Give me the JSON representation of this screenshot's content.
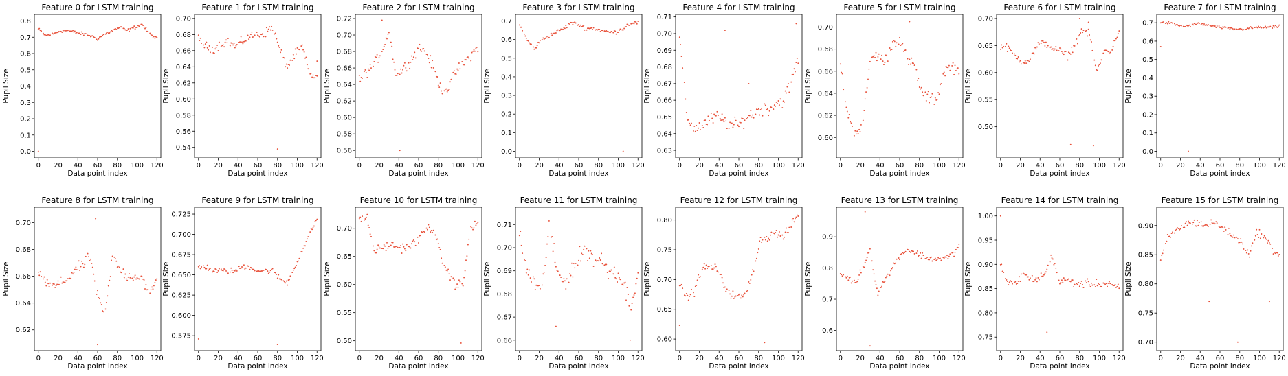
{
  "chart_data": [
    {
      "type": "scatter",
      "title": "Feature 0 for LSTM training",
      "xlabel": "Data point index",
      "ylabel": "Pupil Size",
      "xlim": [
        -4,
        124
      ],
      "ylim": [
        -0.04,
        0.84
      ],
      "yticks": [
        "0.0",
        "0.1",
        "0.2",
        "0.3",
        "0.4",
        "0.5",
        "0.6",
        "0.7",
        "0.8"
      ],
      "xticks": [
        "0",
        "20",
        "40",
        "60",
        "80",
        "100",
        "120"
      ],
      "color": "#e8513a",
      "baseline": [
        0.75,
        0.71,
        0.72,
        0.74,
        0.74,
        0.73,
        0.72,
        0.71,
        0.69,
        0.72,
        0.74,
        0.76,
        0.74,
        0.76,
        0.78,
        0.72,
        0.69
      ],
      "outliers": [
        [
          0,
          0.0
        ]
      ],
      "noise": 0.015
    },
    {
      "type": "scatter",
      "title": "Feature 1 for LSTM training",
      "xlabel": "Data point index",
      "ylabel": "Pupil Size",
      "xlim": [
        -4,
        124
      ],
      "ylim": [
        0.527,
        0.705
      ],
      "yticks": [
        "0.54",
        "0.56",
        "0.58",
        "0.60",
        "0.62",
        "0.64",
        "0.66",
        "0.68",
        "0.70"
      ],
      "xticks": [
        "0",
        "20",
        "40",
        "60",
        "80",
        "100",
        "120"
      ],
      "color": "#e8513a",
      "baseline": [
        0.675,
        0.665,
        0.662,
        0.668,
        0.672,
        0.665,
        0.672,
        0.678,
        0.68,
        0.682,
        0.69,
        0.66,
        0.64,
        0.655,
        0.665,
        0.63,
        0.628
      ],
      "outliers": [
        [
          80,
          0.538
        ],
        [
          120,
          0.647
        ]
      ],
      "noise": 0.008
    },
    {
      "type": "scatter",
      "title": "Feature 2 for LSTM training",
      "xlabel": "Data point index",
      "ylabel": "Pupil Size",
      "xlim": [
        -4,
        124
      ],
      "ylim": [
        0.551,
        0.725
      ],
      "yticks": [
        "0.56",
        "0.58",
        "0.60",
        "0.62",
        "0.64",
        "0.66",
        "0.68",
        "0.70",
        "0.72"
      ],
      "xticks": [
        "0",
        "20",
        "40",
        "60",
        "80",
        "100",
        "120"
      ],
      "color": "#e8513a",
      "baseline": [
        0.645,
        0.655,
        0.665,
        0.68,
        0.705,
        0.65,
        0.66,
        0.67,
        0.685,
        0.68,
        0.66,
        0.635,
        0.635,
        0.655,
        0.665,
        0.675,
        0.685
      ],
      "outliers": [
        [
          41,
          0.56
        ],
        [
          23,
          0.718
        ]
      ],
      "noise": 0.009
    },
    {
      "type": "scatter",
      "title": "Feature 3 for LSTM training",
      "xlabel": "Data point index",
      "ylabel": "Pupil Size",
      "xlim": [
        -4,
        124
      ],
      "ylim": [
        -0.035,
        0.735
      ],
      "yticks": [
        "0.0",
        "0.1",
        "0.2",
        "0.3",
        "0.4",
        "0.5",
        "0.6",
        "0.7"
      ],
      "xticks": [
        "0",
        "20",
        "40",
        "60",
        "80",
        "100",
        "120"
      ],
      "color": "#e8513a",
      "baseline": [
        0.68,
        0.6,
        0.55,
        0.6,
        0.62,
        0.64,
        0.66,
        0.69,
        0.68,
        0.66,
        0.66,
        0.65,
        0.64,
        0.64,
        0.66,
        0.69,
        0.69
      ],
      "outliers": [
        [
          105,
          0.0
        ]
      ],
      "noise": 0.015
    },
    {
      "type": "scatter",
      "title": "Feature 4 for LSTM training",
      "xlabel": "Data point index",
      "ylabel": "Pupil Size",
      "xlim": [
        -4,
        124
      ],
      "ylim": [
        0.6255,
        0.7115
      ],
      "yticks": [
        "0.63",
        "0.64",
        "0.65",
        "0.66",
        "0.67",
        "0.68",
        "0.69",
        "0.70",
        "0.71"
      ],
      "xticks": [
        "0",
        "20",
        "40",
        "60",
        "80",
        "100",
        "120"
      ],
      "color": "#e8513a",
      "baseline": [
        0.698,
        0.65,
        0.643,
        0.645,
        0.648,
        0.65,
        0.648,
        0.645,
        0.645,
        0.65,
        0.652,
        0.655,
        0.655,
        0.658,
        0.66,
        0.67,
        0.685
      ],
      "outliers": [
        [
          46,
          0.702
        ],
        [
          70,
          0.67
        ],
        [
          118,
          0.706
        ]
      ],
      "noise": 0.006
    },
    {
      "type": "scatter",
      "title": "Feature 5 for LSTM training",
      "xlabel": "Data point index",
      "ylabel": "Pupil Size",
      "xlim": [
        -4,
        124
      ],
      "ylim": [
        0.5815,
        0.7115
      ],
      "yticks": [
        "0.60",
        "0.62",
        "0.64",
        "0.66",
        "0.68",
        "0.70"
      ],
      "xticks": [
        "0",
        "20",
        "40",
        "60",
        "80",
        "100",
        "120"
      ],
      "color": "#e8513a",
      "baseline": [
        0.665,
        0.62,
        0.605,
        0.61,
        0.67,
        0.675,
        0.668,
        0.685,
        0.69,
        0.67,
        0.665,
        0.64,
        0.635,
        0.635,
        0.66,
        0.665,
        0.66
      ],
      "outliers": [
        [
          70,
          0.705
        ]
      ],
      "noise": 0.008
    },
    {
      "type": "scatter",
      "title": "Feature 6 for LSTM training",
      "xlabel": "Data point index",
      "ylabel": "Pupil Size",
      "xlim": [
        -4,
        124
      ],
      "ylim": [
        0.4425,
        0.7075
      ],
      "yticks": [
        "0.50",
        "0.55",
        "0.60",
        "0.65",
        "0.70"
      ],
      "xticks": [
        "0",
        "20",
        "40",
        "60",
        "80",
        "100",
        "120"
      ],
      "color": "#e8513a",
      "baseline": [
        0.65,
        0.645,
        0.63,
        0.62,
        0.625,
        0.65,
        0.655,
        0.645,
        0.64,
        0.63,
        0.65,
        0.68,
        0.67,
        0.6,
        0.64,
        0.64,
        0.68
      ],
      "outliers": [
        [
          71,
          0.467
        ],
        [
          94,
          0.465
        ],
        [
          80,
          0.7
        ],
        [
          89,
          0.693
        ]
      ],
      "noise": 0.01
    },
    {
      "type": "scatter",
      "title": "Feature 7 for LSTM training",
      "xlabel": "Data point index",
      "ylabel": "Pupil Size",
      "xlim": [
        -4,
        124
      ],
      "ylim": [
        -0.0355,
        0.7455
      ],
      "yticks": [
        "0.0",
        "0.1",
        "0.2",
        "0.3",
        "0.4",
        "0.5",
        "0.6",
        "0.7"
      ],
      "xticks": [
        "0",
        "20",
        "40",
        "60",
        "80",
        "100",
        "120"
      ],
      "color": "#e8513a",
      "baseline": [
        0.7,
        0.7,
        0.69,
        0.68,
        0.685,
        0.695,
        0.69,
        0.68,
        0.675,
        0.67,
        0.665,
        0.665,
        0.67,
        0.675,
        0.675,
        0.675,
        0.68
      ],
      "outliers": [
        [
          0,
          0.57
        ],
        [
          28,
          0.0
        ]
      ],
      "noise": 0.01
    },
    {
      "type": "scatter",
      "title": "Feature 8 for LSTM training",
      "xlabel": "Data point index",
      "ylabel": "Pupil Size",
      "xlim": [
        -4,
        124
      ],
      "ylim": [
        0.6045,
        0.7115
      ],
      "yticks": [
        "0.62",
        "0.64",
        "0.66",
        "0.68",
        "0.70"
      ],
      "xticks": [
        "0",
        "20",
        "40",
        "60",
        "80",
        "100",
        "120"
      ],
      "color": "#e8513a",
      "baseline": [
        0.665,
        0.655,
        0.652,
        0.655,
        0.658,
        0.665,
        0.668,
        0.675,
        0.645,
        0.63,
        0.675,
        0.665,
        0.66,
        0.66,
        0.66,
        0.645,
        0.658
      ],
      "outliers": [
        [
          58,
          0.703
        ],
        [
          60,
          0.609
        ]
      ],
      "noise": 0.006
    },
    {
      "type": "scatter",
      "title": "Feature 9 for LSTM training",
      "xlabel": "Data point index",
      "ylabel": "Pupil Size",
      "xlim": [
        -4,
        124
      ],
      "ylim": [
        0.5565,
        0.7335
      ],
      "yticks": [
        "0.575",
        "0.600",
        "0.625",
        "0.650",
        "0.675",
        "0.700",
        "0.725"
      ],
      "xticks": [
        "0",
        "20",
        "40",
        "60",
        "80",
        "100",
        "120"
      ],
      "color": "#e8513a",
      "baseline": [
        0.66,
        0.66,
        0.655,
        0.655,
        0.655,
        0.655,
        0.66,
        0.66,
        0.655,
        0.655,
        0.655,
        0.645,
        0.64,
        0.66,
        0.68,
        0.7,
        0.72
      ],
      "outliers": [
        [
          0,
          0.571
        ],
        [
          80,
          0.564
        ]
      ],
      "noise": 0.005
    },
    {
      "type": "scatter",
      "title": "Feature 10 for LSTM training",
      "xlabel": "Data point index",
      "ylabel": "Pupil Size",
      "xlim": [
        -4,
        124
      ],
      "ylim": [
        0.4825,
        0.7375
      ],
      "yticks": [
        "0.50",
        "0.55",
        "0.60",
        "0.65",
        "0.70"
      ],
      "xticks": [
        "0",
        "20",
        "40",
        "60",
        "80",
        "100",
        "120"
      ],
      "color": "#e8513a",
      "baseline": [
        0.715,
        0.72,
        0.66,
        0.665,
        0.67,
        0.668,
        0.665,
        0.67,
        0.68,
        0.7,
        0.7,
        0.65,
        0.62,
        0.6,
        0.6,
        0.7,
        0.71
      ],
      "outliers": [
        [
          103,
          0.496
        ]
      ],
      "noise": 0.012
    },
    {
      "type": "scatter",
      "title": "Feature 11 for LSTM training",
      "xlabel": "Data point index",
      "ylabel": "Pupil Size",
      "xlim": [
        -4,
        124
      ],
      "ylim": [
        0.6555,
        0.7175
      ],
      "yticks": [
        "0.66",
        "0.67",
        "0.68",
        "0.69",
        "0.70",
        "0.71"
      ],
      "xticks": [
        "0",
        "20",
        "40",
        "60",
        "80",
        "100",
        "120"
      ],
      "color": "#e8513a",
      "baseline": [
        0.705,
        0.69,
        0.685,
        0.68,
        0.71,
        0.69,
        0.685,
        0.69,
        0.695,
        0.7,
        0.695,
        0.695,
        0.69,
        0.69,
        0.685,
        0.675,
        0.69
      ],
      "outliers": [
        [
          37,
          0.666
        ],
        [
          112,
          0.66
        ]
      ],
      "noise": 0.006
    },
    {
      "type": "scatter",
      "title": "Feature 12 for LSTM training",
      "xlabel": "Data point index",
      "ylabel": "Pupil Size",
      "xlim": [
        -4,
        124
      ],
      "ylim": [
        0.5805,
        0.8215
      ],
      "yticks": [
        "0.60",
        "0.65",
        "0.70",
        "0.75",
        "0.80"
      ],
      "xticks": [
        "0",
        "20",
        "40",
        "60",
        "80",
        "100",
        "120"
      ],
      "color": "#e8513a",
      "baseline": [
        0.69,
        0.67,
        0.68,
        0.72,
        0.72,
        0.72,
        0.69,
        0.675,
        0.67,
        0.675,
        0.72,
        0.77,
        0.77,
        0.78,
        0.77,
        0.79,
        0.81
      ],
      "outliers": [
        [
          0,
          0.623
        ],
        [
          86,
          0.594
        ]
      ],
      "noise": 0.01
    },
    {
      "type": "scatter",
      "title": "Feature 13 for LSTM training",
      "xlabel": "Data point index",
      "ylabel": "Pupil Size",
      "xlim": [
        -4,
        124
      ],
      "ylim": [
        0.535,
        0.995
      ],
      "yticks": [
        "0.6",
        "0.7",
        "0.8",
        "0.9"
      ],
      "xticks": [
        "0",
        "20",
        "40",
        "60",
        "80",
        "100",
        "120"
      ],
      "color": "#e8513a",
      "baseline": [
        0.78,
        0.77,
        0.75,
        0.8,
        0.86,
        0.72,
        0.76,
        0.8,
        0.84,
        0.86,
        0.85,
        0.84,
        0.83,
        0.83,
        0.83,
        0.84,
        0.87
      ],
      "outliers": [
        [
          25,
          0.98
        ],
        [
          30,
          0.55
        ]
      ],
      "noise": 0.015
    },
    {
      "type": "scatter",
      "title": "Feature 14 for LSTM training",
      "xlabel": "Data point index",
      "ylabel": "Pupil Size",
      "xlim": [
        -4,
        124
      ],
      "ylim": [
        0.722,
        1.018
      ],
      "yticks": [
        "0.75",
        "0.80",
        "0.85",
        "0.90",
        "0.95",
        "1.00"
      ],
      "xticks": [
        "0",
        "20",
        "40",
        "60",
        "80",
        "100",
        "120"
      ],
      "color": "#e8513a",
      "baseline": [
        0.9,
        0.86,
        0.86,
        0.88,
        0.87,
        0.87,
        0.88,
        0.92,
        0.86,
        0.87,
        0.86,
        0.86,
        0.86,
        0.86,
        0.86,
        0.86,
        0.85
      ],
      "outliers": [
        [
          0,
          1.0
        ],
        [
          47,
          0.76
        ]
      ],
      "noise": 0.012
    },
    {
      "type": "scatter",
      "title": "Feature 15 for LSTM training",
      "xlabel": "Data point index",
      "ylabel": "Pupil Size",
      "xlim": [
        -4,
        124
      ],
      "ylim": [
        0.6855,
        0.9315
      ],
      "yticks": [
        "0.70",
        "0.75",
        "0.80",
        "0.85",
        "0.90"
      ],
      "xticks": [
        "0",
        "20",
        "40",
        "60",
        "80",
        "100",
        "120"
      ],
      "color": "#e8513a",
      "baseline": [
        0.84,
        0.88,
        0.89,
        0.9,
        0.905,
        0.905,
        0.9,
        0.905,
        0.9,
        0.89,
        0.88,
        0.87,
        0.85,
        0.89,
        0.88,
        0.86,
        0.85
      ],
      "outliers": [
        [
          49,
          0.77
        ],
        [
          78,
          0.7
        ],
        [
          110,
          0.77
        ]
      ],
      "noise": 0.01
    }
  ]
}
